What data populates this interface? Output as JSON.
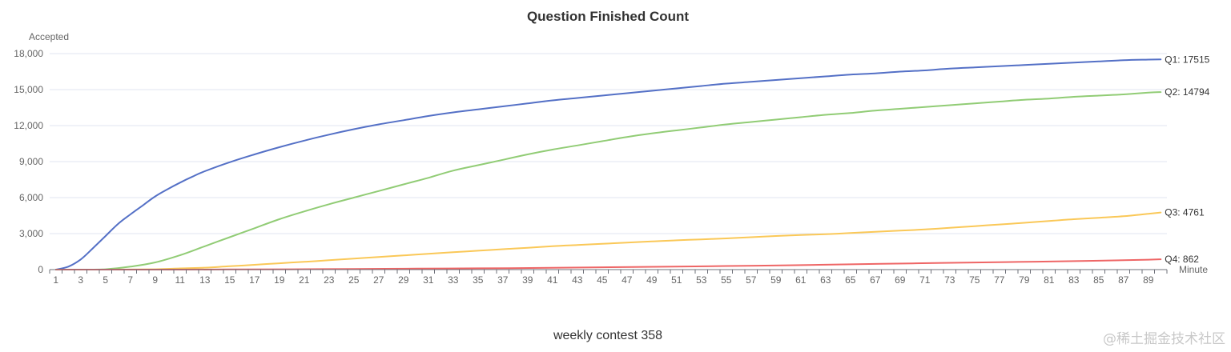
{
  "chart_data": {
    "type": "line",
    "title": "Question Finished Count",
    "subtitle": "weekly contest 358",
    "xlabel": "Minute",
    "ylabel": "Accepted",
    "ylim": [
      0,
      18000
    ],
    "y_ticks": [
      "0",
      "3,000",
      "6,000",
      "9,000",
      "12,000",
      "15,000",
      "18,000"
    ],
    "x_range": [
      1,
      90
    ],
    "x_tick_interval": 2,
    "grid": true,
    "legend": "none",
    "series": [
      {
        "name": "Q1",
        "end_label": "Q1: 17515",
        "color": "#5470c6",
        "points": [
          [
            1,
            0
          ],
          [
            2,
            250
          ],
          [
            3,
            850
          ],
          [
            4,
            1800
          ],
          [
            5,
            2800
          ],
          [
            6,
            3800
          ],
          [
            7,
            4600
          ],
          [
            8,
            5350
          ],
          [
            9,
            6100
          ],
          [
            10,
            6700
          ],
          [
            11,
            7250
          ],
          [
            12,
            7750
          ],
          [
            13,
            8200
          ],
          [
            15,
            8950
          ],
          [
            17,
            9600
          ],
          [
            19,
            10200
          ],
          [
            21,
            10750
          ],
          [
            23,
            11250
          ],
          [
            25,
            11700
          ],
          [
            27,
            12100
          ],
          [
            29,
            12450
          ],
          [
            31,
            12800
          ],
          [
            33,
            13100
          ],
          [
            35,
            13350
          ],
          [
            37,
            13600
          ],
          [
            39,
            13850
          ],
          [
            41,
            14100
          ],
          [
            43,
            14300
          ],
          [
            45,
            14500
          ],
          [
            47,
            14700
          ],
          [
            49,
            14900
          ],
          [
            51,
            15100
          ],
          [
            53,
            15300
          ],
          [
            55,
            15500
          ],
          [
            57,
            15650
          ],
          [
            59,
            15800
          ],
          [
            61,
            15950
          ],
          [
            63,
            16100
          ],
          [
            65,
            16250
          ],
          [
            67,
            16350
          ],
          [
            69,
            16500
          ],
          [
            71,
            16600
          ],
          [
            73,
            16750
          ],
          [
            75,
            16850
          ],
          [
            77,
            16950
          ],
          [
            79,
            17050
          ],
          [
            81,
            17150
          ],
          [
            83,
            17250
          ],
          [
            85,
            17350
          ],
          [
            87,
            17450
          ],
          [
            89,
            17500
          ],
          [
            90,
            17515
          ]
        ]
      },
      {
        "name": "Q2",
        "end_label": "Q2: 14794",
        "color": "#91cc75",
        "points": [
          [
            1,
            0
          ],
          [
            3,
            0
          ],
          [
            5,
            30
          ],
          [
            7,
            250
          ],
          [
            9,
            600
          ],
          [
            11,
            1200
          ],
          [
            13,
            1950
          ],
          [
            15,
            2700
          ],
          [
            17,
            3450
          ],
          [
            19,
            4200
          ],
          [
            21,
            4850
          ],
          [
            23,
            5450
          ],
          [
            25,
            6000
          ],
          [
            27,
            6550
          ],
          [
            29,
            7100
          ],
          [
            31,
            7650
          ],
          [
            33,
            8250
          ],
          [
            35,
            8700
          ],
          [
            37,
            9150
          ],
          [
            39,
            9600
          ],
          [
            41,
            10000
          ],
          [
            43,
            10350
          ],
          [
            45,
            10700
          ],
          [
            47,
            11050
          ],
          [
            49,
            11350
          ],
          [
            51,
            11600
          ],
          [
            53,
            11850
          ],
          [
            55,
            12100
          ],
          [
            57,
            12300
          ],
          [
            59,
            12500
          ],
          [
            61,
            12700
          ],
          [
            63,
            12900
          ],
          [
            65,
            13050
          ],
          [
            67,
            13250
          ],
          [
            69,
            13400
          ],
          [
            71,
            13550
          ],
          [
            73,
            13700
          ],
          [
            75,
            13850
          ],
          [
            77,
            14000
          ],
          [
            79,
            14150
          ],
          [
            81,
            14250
          ],
          [
            83,
            14400
          ],
          [
            85,
            14500
          ],
          [
            87,
            14600
          ],
          [
            89,
            14750
          ],
          [
            90,
            14794
          ]
        ]
      },
      {
        "name": "Q3",
        "end_label": "Q3: 4761",
        "color": "#fac858",
        "points": [
          [
            1,
            0
          ],
          [
            5,
            0
          ],
          [
            9,
            30
          ],
          [
            11,
            100
          ],
          [
            13,
            160
          ],
          [
            15,
            280
          ],
          [
            17,
            400
          ],
          [
            19,
            530
          ],
          [
            21,
            650
          ],
          [
            23,
            780
          ],
          [
            25,
            920
          ],
          [
            27,
            1050
          ],
          [
            29,
            1180
          ],
          [
            31,
            1320
          ],
          [
            33,
            1450
          ],
          [
            35,
            1570
          ],
          [
            37,
            1700
          ],
          [
            39,
            1820
          ],
          [
            41,
            1950
          ],
          [
            43,
            2050
          ],
          [
            45,
            2150
          ],
          [
            47,
            2250
          ],
          [
            49,
            2350
          ],
          [
            51,
            2440
          ],
          [
            53,
            2520
          ],
          [
            55,
            2600
          ],
          [
            57,
            2700
          ],
          [
            59,
            2800
          ],
          [
            61,
            2880
          ],
          [
            63,
            2950
          ],
          [
            65,
            3050
          ],
          [
            67,
            3150
          ],
          [
            69,
            3250
          ],
          [
            71,
            3350
          ],
          [
            73,
            3480
          ],
          [
            75,
            3620
          ],
          [
            77,
            3760
          ],
          [
            79,
            3900
          ],
          [
            81,
            4050
          ],
          [
            83,
            4200
          ],
          [
            85,
            4320
          ],
          [
            87,
            4450
          ],
          [
            89,
            4650
          ],
          [
            90,
            4761
          ]
        ]
      },
      {
        "name": "Q4",
        "end_label": "Q4: 862",
        "color": "#ee6666",
        "points": [
          [
            1,
            0
          ],
          [
            11,
            0
          ],
          [
            15,
            15
          ],
          [
            20,
            30
          ],
          [
            25,
            55
          ],
          [
            30,
            80
          ],
          [
            35,
            105
          ],
          [
            40,
            140
          ],
          [
            45,
            190
          ],
          [
            50,
            240
          ],
          [
            55,
            300
          ],
          [
            60,
            360
          ],
          [
            65,
            440
          ],
          [
            70,
            520
          ],
          [
            75,
            590
          ],
          [
            80,
            660
          ],
          [
            85,
            740
          ],
          [
            89,
            830
          ],
          [
            90,
            862
          ]
        ]
      }
    ]
  },
  "watermark": "@稀土掘金技术社区"
}
